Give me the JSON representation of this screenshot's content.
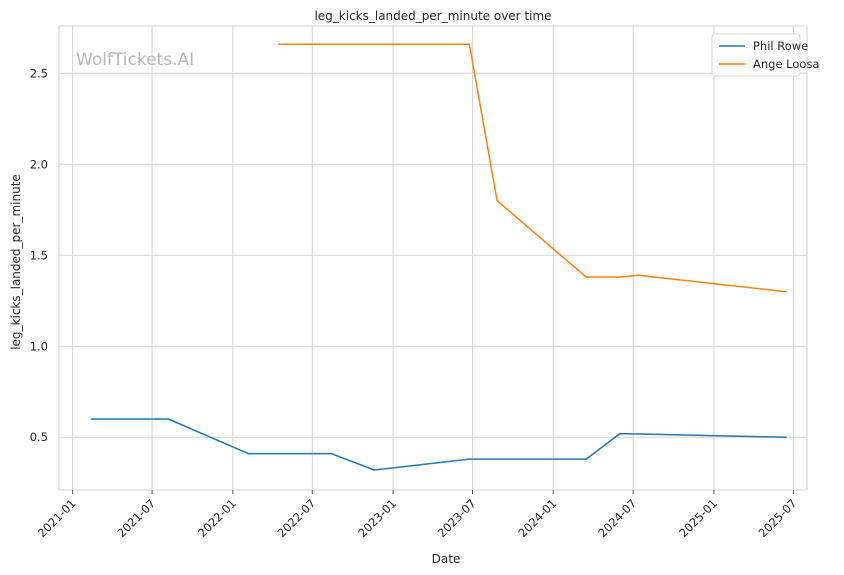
{
  "chart_data": {
    "type": "line",
    "title": "leg_kicks_landed_per_minute over time",
    "xlabel": "Date",
    "ylabel": "leg_kicks_landed_per_minute",
    "watermark": "WolfTickets.AI",
    "x_ticks": [
      "2021-01",
      "2021-07",
      "2022-01",
      "2022-07",
      "2023-01",
      "2023-07",
      "2024-01",
      "2024-07",
      "2025-01",
      "2025-07"
    ],
    "y_ticks": [
      "0.5",
      "1.0",
      "1.5",
      "2.0",
      "2.5"
    ],
    "xlim": [
      "2020-12-01",
      "2025-08-01"
    ],
    "ylim": [
      0.21,
      2.76
    ],
    "grid": true,
    "legend_position": "top-right",
    "series": [
      {
        "name": "Phil Rowe",
        "color": "#1f77b4",
        "x": [
          "2021-02-13",
          "2021-08-07",
          "2022-02-05",
          "2022-08-13",
          "2022-11-19",
          "2023-06-24",
          "2024-03-16",
          "2024-06-01",
          "2025-06-14"
        ],
        "y": [
          0.6,
          0.6,
          0.41,
          0.41,
          0.32,
          0.38,
          0.38,
          0.52,
          0.5
        ]
      },
      {
        "name": "Ange Loosa",
        "color": "#ff7f0e",
        "x": [
          "2022-04-16",
          "2023-06-24",
          "2023-08-26",
          "2024-03-16",
          "2024-06-01",
          "2024-07-13",
          "2025-06-14"
        ],
        "y": [
          2.66,
          2.66,
          1.8,
          1.38,
          1.38,
          1.39,
          1.3
        ]
      }
    ]
  }
}
